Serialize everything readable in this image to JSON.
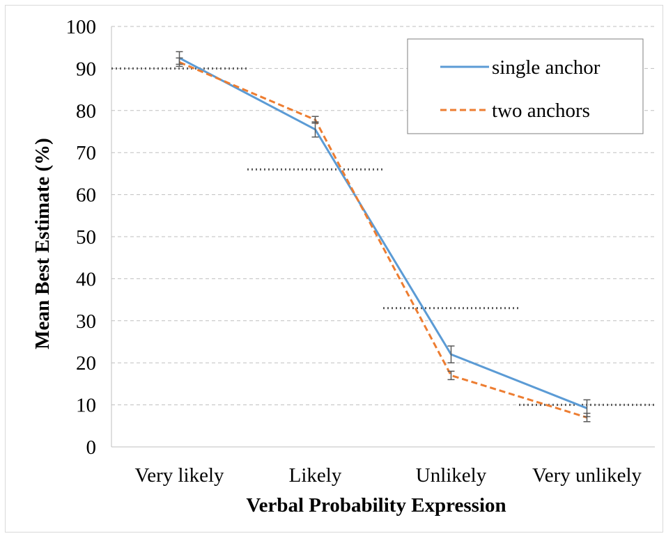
{
  "chart_data": {
    "type": "line",
    "title": "",
    "xlabel": "Verbal Probability Expression",
    "ylabel": "Mean Best Estimate (%)",
    "categories": [
      "Very likely",
      "Likely",
      "Unlikely",
      "Very unlikely"
    ],
    "ylim": [
      0,
      100
    ],
    "yticks": [
      0,
      10,
      20,
      30,
      40,
      50,
      60,
      70,
      80,
      90,
      100
    ],
    "grid": true,
    "legend": "top-right",
    "series": [
      {
        "name": "single anchor",
        "values": [
          92.5,
          75.5,
          22.0,
          9.2
        ],
        "error": [
          1.5,
          1.8,
          2.0,
          2.0
        ],
        "color": "#5b9bd5",
        "style": "solid"
      },
      {
        "name": "two anchors",
        "values": [
          91.5,
          77.8,
          17.0,
          7.0
        ],
        "error": [
          1.0,
          0.8,
          1.0,
          1.0
        ],
        "color": "#ed7d31",
        "style": "dashed"
      }
    ],
    "reference_lines": [
      {
        "category_start": 0,
        "category_end": 1,
        "value": 90
      },
      {
        "category_start": 1,
        "category_end": 2,
        "value": 66
      },
      {
        "category_start": 2,
        "category_end": 3,
        "value": 33
      },
      {
        "category_start": 3,
        "category_end": 4,
        "value": 10
      }
    ],
    "reference_color": "#595959",
    "errorbar_color": "#595959",
    "grid_color": "#bfbfbf"
  }
}
